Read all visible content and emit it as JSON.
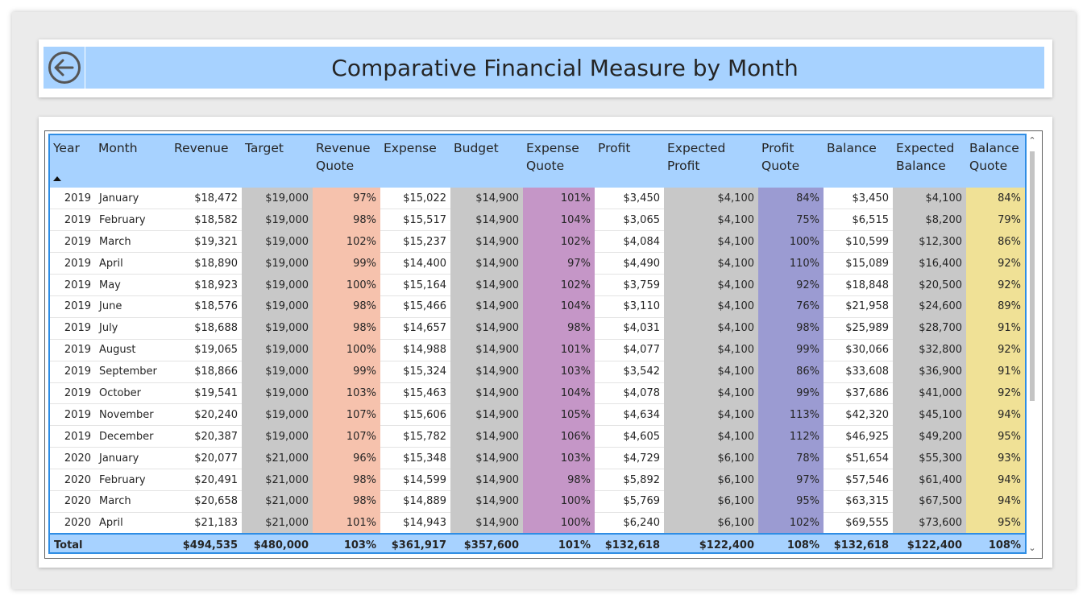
{
  "title": "Comparative Financial Measure by Month",
  "colors": {
    "header": "#a7d2ff",
    "accent": "#2f8de4",
    "gray": "#c8c8c8",
    "salmon": "#f6c2ad",
    "purple": "#c596c7",
    "blue": "#9b9bd2",
    "yellow": "#f0e196"
  },
  "columns": [
    {
      "key": "year",
      "label": "Year",
      "align": "right"
    },
    {
      "key": "month",
      "label": "Month",
      "align": "left"
    },
    {
      "key": "revenue",
      "label": "Revenue"
    },
    {
      "key": "target",
      "label": "Target",
      "color": "gray"
    },
    {
      "key": "revenue_quote",
      "label": "Revenue Quote",
      "color": "salmon"
    },
    {
      "key": "expense",
      "label": "Expense"
    },
    {
      "key": "budget",
      "label": "Budget",
      "color": "gray"
    },
    {
      "key": "expense_quote",
      "label": "Expense Quote",
      "color": "purple"
    },
    {
      "key": "profit",
      "label": "Profit"
    },
    {
      "key": "expected_profit",
      "label": "Expected Profit",
      "color": "gray"
    },
    {
      "key": "profit_quote",
      "label": "Profit Quote",
      "color": "blue"
    },
    {
      "key": "balance",
      "label": "Balance"
    },
    {
      "key": "expected_balance",
      "label": "Expected Balance",
      "color": "gray"
    },
    {
      "key": "balance_quote",
      "label": "Balance Quote",
      "color": "yellow"
    }
  ],
  "rows": [
    [
      "2019",
      "January",
      "$18,472",
      "$19,000",
      "97%",
      "$15,022",
      "$14,900",
      "101%",
      "$3,450",
      "$4,100",
      "84%",
      "$3,450",
      "$4,100",
      "84%"
    ],
    [
      "2019",
      "February",
      "$18,582",
      "$19,000",
      "98%",
      "$15,517",
      "$14,900",
      "104%",
      "$3,065",
      "$4,100",
      "75%",
      "$6,515",
      "$8,200",
      "79%"
    ],
    [
      "2019",
      "March",
      "$19,321",
      "$19,000",
      "102%",
      "$15,237",
      "$14,900",
      "102%",
      "$4,084",
      "$4,100",
      "100%",
      "$10,599",
      "$12,300",
      "86%"
    ],
    [
      "2019",
      "April",
      "$18,890",
      "$19,000",
      "99%",
      "$14,400",
      "$14,900",
      "97%",
      "$4,490",
      "$4,100",
      "110%",
      "$15,089",
      "$16,400",
      "92%"
    ],
    [
      "2019",
      "May",
      "$18,923",
      "$19,000",
      "100%",
      "$15,164",
      "$14,900",
      "102%",
      "$3,759",
      "$4,100",
      "92%",
      "$18,848",
      "$20,500",
      "92%"
    ],
    [
      "2019",
      "June",
      "$18,576",
      "$19,000",
      "98%",
      "$15,466",
      "$14,900",
      "104%",
      "$3,110",
      "$4,100",
      "76%",
      "$21,958",
      "$24,600",
      "89%"
    ],
    [
      "2019",
      "July",
      "$18,688",
      "$19,000",
      "98%",
      "$14,657",
      "$14,900",
      "98%",
      "$4,031",
      "$4,100",
      "98%",
      "$25,989",
      "$28,700",
      "91%"
    ],
    [
      "2019",
      "August",
      "$19,065",
      "$19,000",
      "100%",
      "$14,988",
      "$14,900",
      "101%",
      "$4,077",
      "$4,100",
      "99%",
      "$30,066",
      "$32,800",
      "92%"
    ],
    [
      "2019",
      "September",
      "$18,866",
      "$19,000",
      "99%",
      "$15,324",
      "$14,900",
      "103%",
      "$3,542",
      "$4,100",
      "86%",
      "$33,608",
      "$36,900",
      "91%"
    ],
    [
      "2019",
      "October",
      "$19,541",
      "$19,000",
      "103%",
      "$15,463",
      "$14,900",
      "104%",
      "$4,078",
      "$4,100",
      "99%",
      "$37,686",
      "$41,000",
      "92%"
    ],
    [
      "2019",
      "November",
      "$20,240",
      "$19,000",
      "107%",
      "$15,606",
      "$14,900",
      "105%",
      "$4,634",
      "$4,100",
      "113%",
      "$42,320",
      "$45,100",
      "94%"
    ],
    [
      "2019",
      "December",
      "$20,387",
      "$19,000",
      "107%",
      "$15,782",
      "$14,900",
      "106%",
      "$4,605",
      "$4,100",
      "112%",
      "$46,925",
      "$49,200",
      "95%"
    ],
    [
      "2020",
      "January",
      "$20,077",
      "$21,000",
      "96%",
      "$15,348",
      "$14,900",
      "103%",
      "$4,729",
      "$6,100",
      "78%",
      "$51,654",
      "$55,300",
      "93%"
    ],
    [
      "2020",
      "February",
      "$20,491",
      "$21,000",
      "98%",
      "$14,599",
      "$14,900",
      "98%",
      "$5,892",
      "$6,100",
      "97%",
      "$57,546",
      "$61,400",
      "94%"
    ],
    [
      "2020",
      "March",
      "$20,658",
      "$21,000",
      "98%",
      "$14,889",
      "$14,900",
      "100%",
      "$5,769",
      "$6,100",
      "95%",
      "$63,315",
      "$67,500",
      "94%"
    ],
    [
      "2020",
      "April",
      "$21,183",
      "$21,000",
      "101%",
      "$14,943",
      "$14,900",
      "100%",
      "$6,240",
      "$6,100",
      "102%",
      "$69,555",
      "$73,600",
      "95%"
    ]
  ],
  "totals": [
    "Total",
    "",
    "$494,535",
    "$480,000",
    "103%",
    "$361,917",
    "$357,600",
    "101%",
    "$132,618",
    "$122,400",
    "108%",
    "$132,618",
    "$122,400",
    "108%"
  ],
  "icons": {
    "back": "back-arrow-circle-icon",
    "sort": "sort-ascending-icon",
    "scroll_up": "chevron-up-icon",
    "scroll_down": "chevron-down-icon"
  }
}
